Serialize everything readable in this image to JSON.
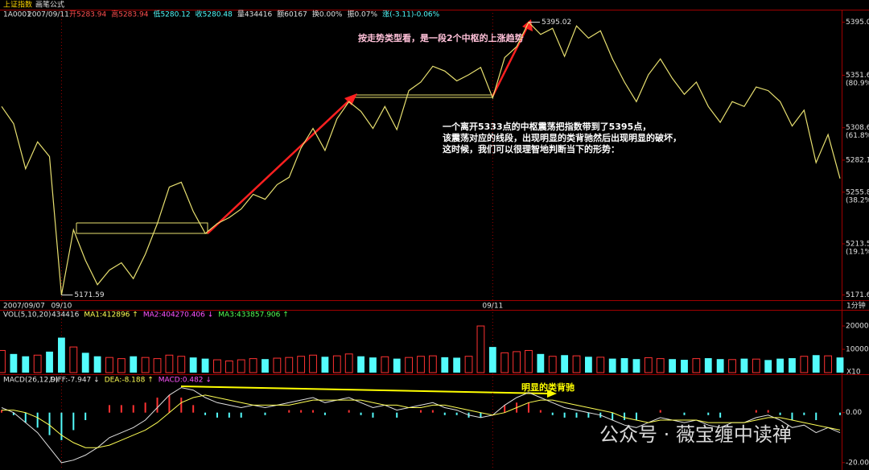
{
  "header": {
    "title": "上证指数",
    "formula": "画笔公式",
    "code": "1A0001",
    "date": "2007/09/11",
    "fields": [
      {
        "text": "开5283.94",
        "color": "#ff5050"
      },
      {
        "text": "高5283.94",
        "color": "#ff5050"
      },
      {
        "text": "低5280.12",
        "color": "#54fcfc"
      },
      {
        "text": "收5280.48",
        "color": "#54fcfc"
      },
      {
        "text": "量434416",
        "color": "#e0e0e0"
      },
      {
        "text": "额60167",
        "color": "#e0e0e0"
      },
      {
        "text": "换0.00%",
        "color": "#e0e0e0"
      },
      {
        "text": "振0.07%",
        "color": "#e0e0e0"
      },
      {
        "text": "涨(-3.11)-0.06%",
        "color": "#54fcfc"
      }
    ]
  },
  "watermark": "公众号 · 薇宝缠中读禅",
  "chart_data": [
    {
      "type": "line",
      "categories": [
        "2007/09/07",
        null,
        null,
        null,
        null,
        "09/10",
        null,
        null,
        null,
        null,
        null,
        null,
        null,
        null,
        null,
        null,
        null,
        null,
        null,
        null,
        null,
        null,
        null,
        null,
        null,
        null,
        null,
        null,
        null,
        null,
        null,
        null,
        null,
        null,
        null,
        null,
        null,
        null,
        null,
        null,
        null,
        "09/11",
        null,
        null,
        null,
        null,
        null,
        null,
        null,
        null,
        null,
        null,
        null,
        null,
        null,
        null,
        null,
        null,
        null,
        null,
        null,
        null,
        null,
        null,
        null,
        null,
        null,
        null,
        null,
        null,
        null
      ],
      "series": [
        {
          "color": "#e8e070",
          "values": [
            5326,
            5312,
            5275,
            5297,
            5285,
            5171.59,
            5225,
            5200,
            5180,
            5192,
            5198,
            5185,
            5205,
            5230,
            5260,
            5264,
            5240,
            5222,
            5230,
            5235,
            5242,
            5254,
            5250,
            5262,
            5268,
            5292,
            5308,
            5290,
            5316,
            5330,
            5322,
            5308,
            5326,
            5307,
            5339,
            5346,
            5359,
            5355,
            5347,
            5352,
            5358,
            5333,
            5366,
            5375,
            5395.02,
            5385,
            5390,
            5367,
            5392,
            5382,
            5388,
            5365,
            5346,
            5330,
            5352,
            5365,
            5349,
            5336,
            5346,
            5326,
            5313,
            5330,
            5326,
            5342,
            5339,
            5330,
            5310,
            5323,
            5280,
            5303,
            5267
          ]
        }
      ],
      "ylim": [
        5168,
        5404
      ],
      "yticks": [
        {
          "value": 5395,
          "label": "5395.0"
        },
        5351.6,
        5308.6,
        5282.1,
        5255.8,
        5213.5,
        5171.6
      ],
      "ytick_pcts": [
        null,
        "(80.9%)",
        "(61.8%)",
        null,
        "(38.2%)",
        "(19.1%)",
        null
      ],
      "x_unit_label": "1分钟",
      "annotations": [
        "按走势类型看，是一段2个中枢的上涨趋势",
        "一个离开5333点的中枢震荡把指数带到了5395点，",
        "该震荡对应的线段，出现明显的类背驰然后出现明显的破坏，",
        "这时候，我们可以很理智地判断当下的形势："
      ]
    },
    {
      "type": "bar",
      "title": "VOL(5,10,20)",
      "legend": [
        {
          "label": "434416",
          "color": "#e0e0e0"
        },
        {
          "label": "MA1:412896 ↑",
          "color": "#ffff54"
        },
        {
          "label": "MA2:404270.406 ↓",
          "color": "#ff54ff"
        },
        {
          "label": "MA3:433857.906 ↑",
          "color": "#54ff54"
        }
      ],
      "up_color": "#ff3232",
      "down_color": "#54fcfc",
      "values": [
        95000,
        80000,
        70000,
        75000,
        90000,
        150000,
        110000,
        85000,
        70000,
        65000,
        60000,
        70000,
        65000,
        60000,
        75000,
        70000,
        65000,
        60000,
        55000,
        50000,
        55000,
        60000,
        58000,
        62000,
        65000,
        70000,
        75000,
        68000,
        72000,
        80000,
        70000,
        65000,
        68000,
        60000,
        65000,
        70000,
        72000,
        66000,
        64000,
        70000,
        200000,
        110000,
        85000,
        90000,
        95000,
        80000,
        70000,
        75000,
        72000,
        68000,
        66000,
        60000,
        62000,
        58000,
        64000,
        60000,
        58000,
        55000,
        60000,
        62000,
        58000,
        56000,
        60000,
        58000,
        54000,
        60000,
        62000,
        70000,
        75000,
        72000,
        65000
      ],
      "ylim": [
        0,
        245000
      ],
      "yticks": [
        200000,
        100000
      ],
      "unit_label": "X10"
    },
    {
      "type": "macd",
      "title": "MACD(26,12,9)",
      "legend": [
        {
          "label": "DIFF:-7.947 ↓",
          "color": "#e0e0e0"
        },
        {
          "label": "DEA:-8.188 ↑",
          "color": "#ffff54"
        },
        {
          "label": "MACD:0.482 ↓",
          "color": "#ff54ff"
        }
      ],
      "series": [
        {
          "name": "DIFF",
          "color": "#e0e0e0",
          "values": [
            2,
            0,
            -4,
            -8,
            -14,
            -20,
            -19,
            -17,
            -14,
            -10,
            -8,
            -6,
            -3,
            2,
            7,
            10,
            9,
            6,
            4,
            3,
            2,
            3,
            2,
            3,
            4,
            5,
            6,
            4,
            5,
            6,
            4,
            2,
            3,
            1,
            2,
            3,
            4,
            2,
            1,
            -1,
            -2,
            -1,
            3,
            6,
            8,
            6,
            4,
            2,
            1,
            0,
            -1,
            -3,
            -5,
            -6,
            -4,
            -2,
            -3,
            -4,
            -3,
            -5,
            -6,
            -4,
            -4,
            -2,
            -1,
            -3,
            -6,
            -5,
            -8,
            -6,
            -8
          ]
        },
        {
          "name": "DEA",
          "color": "#ffff54",
          "values": [
            1,
            1,
            0,
            -2,
            -5,
            -9,
            -12,
            -14,
            -14,
            -13,
            -11,
            -9,
            -7,
            -4,
            0,
            4,
            6,
            7,
            6,
            5,
            4,
            3,
            3,
            3,
            3,
            4,
            5,
            5,
            5,
            5,
            5,
            4,
            3,
            3,
            2,
            2,
            3,
            3,
            2,
            1,
            0,
            -1,
            0,
            2,
            4,
            5,
            5,
            4,
            3,
            2,
            1,
            0,
            -2,
            -3,
            -4,
            -3,
            -3,
            -3,
            -3,
            -4,
            -4,
            -4,
            -4,
            -3,
            -2,
            -2,
            -3,
            -4,
            -5,
            -6,
            -7
          ]
        }
      ],
      "histogram": [
        1,
        -1,
        -4,
        -6,
        -9,
        -11,
        -7,
        -3,
        0,
        3,
        3,
        3,
        4,
        6,
        7,
        6,
        3,
        -1,
        -2,
        -2,
        -2,
        0,
        -1,
        0,
        1,
        1,
        1,
        -1,
        0,
        1,
        -1,
        -2,
        0,
        -2,
        0,
        1,
        1,
        -1,
        -1,
        -2,
        -2,
        0,
        3,
        4,
        4,
        1,
        -1,
        -2,
        -2,
        -2,
        -2,
        -3,
        -3,
        -3,
        0,
        1,
        0,
        -1,
        0,
        -1,
        -2,
        0,
        0,
        1,
        1,
        -1,
        -3,
        -1,
        -3,
        0,
        -1
      ],
      "hist_up_color": "#ff3232",
      "hist_down_color": "#54fcfc",
      "ylim": [
        -22.3,
        14.7
      ],
      "yticks": [
        {
          "value": 0,
          "label": "0.00"
        },
        {
          "value": -20,
          "label": "-20.00"
        }
      ],
      "annotation": "明显的类背驰"
    }
  ]
}
